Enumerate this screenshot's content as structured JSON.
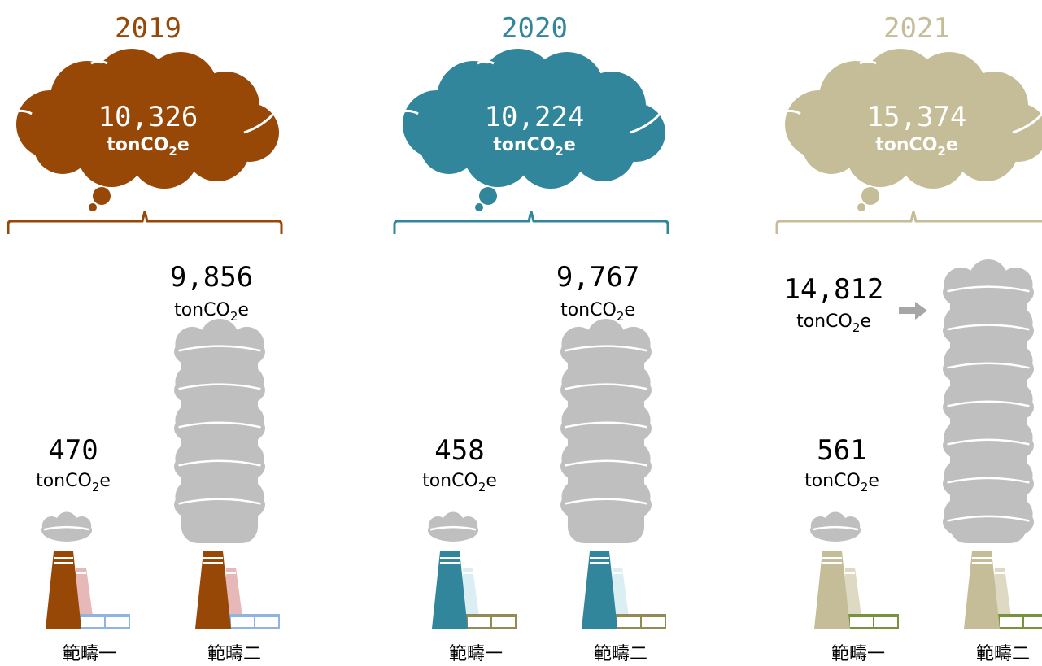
{
  "chart_data": {
    "type": "bar",
    "categories": [
      "範疇一",
      "範疇二"
    ],
    "unit": "tonCO2e",
    "years": [
      {
        "year": "2019",
        "color": "#974706",
        "secondary_color": "#e6b9b8",
        "building_color": "#8db4e2",
        "total": "10,326",
        "scope1": "470",
        "scope2": "9,856"
      },
      {
        "year": "2020",
        "color": "#31869b",
        "secondary_color": "#daeef3",
        "building_color": "#948a54",
        "total": "10,224",
        "scope1": "458",
        "scope2": "9,767"
      },
      {
        "year": "2021",
        "color": "#c4bd97",
        "secondary_color": "#ddd9c3",
        "building_color": "#77933c",
        "total": "15,374",
        "scope1": "561",
        "scope2": "14,812"
      }
    ],
    "smoke_color": "#bfbfbf"
  }
}
